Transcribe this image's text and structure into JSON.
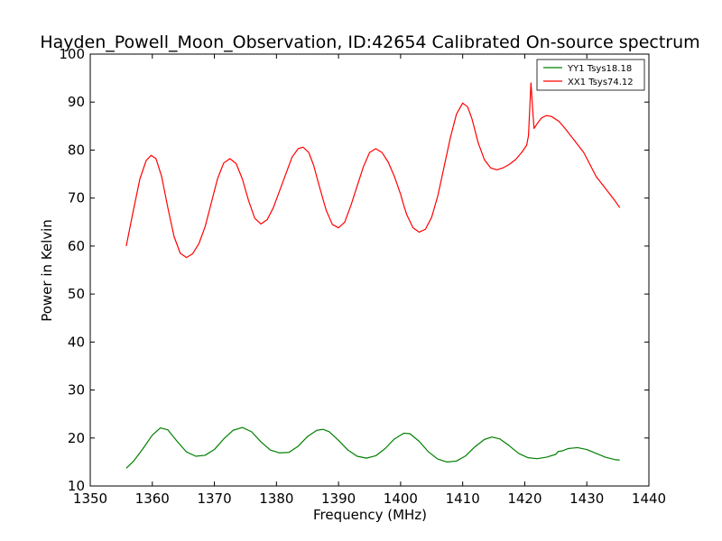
{
  "chart_data": {
    "type": "line",
    "title": "Hayden_Powell_Moon_Observation, ID:42654 Calibrated On-source spectrum",
    "xlabel": "Frequency (MHz)",
    "ylabel": "Power in Kelvin",
    "xlim": [
      1350,
      1440
    ],
    "ylim": [
      10,
      100
    ],
    "xticks": [
      1350,
      1360,
      1370,
      1380,
      1390,
      1400,
      1410,
      1420,
      1430,
      1440
    ],
    "yticks": [
      10,
      20,
      30,
      40,
      50,
      60,
      70,
      80,
      90,
      100
    ],
    "grid": false,
    "legend_position": "top-right",
    "series": [
      {
        "name": "YY1 Tsys18.18",
        "color": "#008000",
        "points": [
          [
            1355.8,
            13.7
          ],
          [
            1357.0,
            15.2
          ],
          [
            1358.5,
            17.8
          ],
          [
            1360.0,
            20.6
          ],
          [
            1361.3,
            22.1
          ],
          [
            1362.5,
            21.7
          ],
          [
            1364.0,
            19.3
          ],
          [
            1365.5,
            17.1
          ],
          [
            1367.0,
            16.2
          ],
          [
            1368.5,
            16.4
          ],
          [
            1370.0,
            17.6
          ],
          [
            1371.5,
            19.8
          ],
          [
            1373.0,
            21.6
          ],
          [
            1374.5,
            22.2
          ],
          [
            1376.0,
            21.3
          ],
          [
            1377.5,
            19.2
          ],
          [
            1379.0,
            17.5
          ],
          [
            1380.5,
            16.9
          ],
          [
            1382.0,
            17.0
          ],
          [
            1383.5,
            18.3
          ],
          [
            1385.0,
            20.3
          ],
          [
            1386.5,
            21.6
          ],
          [
            1387.5,
            21.8
          ],
          [
            1388.5,
            21.3
          ],
          [
            1390.0,
            19.5
          ],
          [
            1391.5,
            17.5
          ],
          [
            1393.0,
            16.2
          ],
          [
            1394.5,
            15.8
          ],
          [
            1396.0,
            16.3
          ],
          [
            1397.5,
            17.8
          ],
          [
            1399.0,
            19.8
          ],
          [
            1400.5,
            21.0
          ],
          [
            1401.5,
            20.9
          ],
          [
            1403.0,
            19.3
          ],
          [
            1404.5,
            17.1
          ],
          [
            1406.0,
            15.6
          ],
          [
            1407.5,
            15.0
          ],
          [
            1409.0,
            15.2
          ],
          [
            1410.5,
            16.3
          ],
          [
            1412.0,
            18.2
          ],
          [
            1413.5,
            19.7
          ],
          [
            1414.7,
            20.2
          ],
          [
            1416.0,
            19.8
          ],
          [
            1417.5,
            18.4
          ],
          [
            1419.0,
            16.8
          ],
          [
            1420.5,
            15.9
          ],
          [
            1422.0,
            15.7
          ],
          [
            1423.5,
            16.0
          ],
          [
            1425.0,
            16.6
          ],
          [
            1425.4,
            17.2
          ],
          [
            1426.0,
            17.3
          ],
          [
            1427.0,
            17.8
          ],
          [
            1428.5,
            18.0
          ],
          [
            1430.0,
            17.6
          ],
          [
            1431.5,
            16.8
          ],
          [
            1433.0,
            16.0
          ],
          [
            1434.5,
            15.5
          ],
          [
            1435.3,
            15.4
          ]
        ]
      },
      {
        "name": "XX1 Tsys74.12",
        "color": "#ff0000",
        "points": [
          [
            1355.8,
            60.0
          ],
          [
            1356.8,
            66.5
          ],
          [
            1358.0,
            74.0
          ],
          [
            1359.0,
            77.8
          ],
          [
            1359.8,
            78.9
          ],
          [
            1360.6,
            78.2
          ],
          [
            1361.5,
            74.5
          ],
          [
            1362.5,
            68.0
          ],
          [
            1363.5,
            62.0
          ],
          [
            1364.5,
            58.5
          ],
          [
            1365.5,
            57.6
          ],
          [
            1366.5,
            58.4
          ],
          [
            1367.5,
            60.5
          ],
          [
            1368.5,
            64.0
          ],
          [
            1369.5,
            69.0
          ],
          [
            1370.5,
            74.0
          ],
          [
            1371.5,
            77.3
          ],
          [
            1372.5,
            78.2
          ],
          [
            1373.5,
            77.2
          ],
          [
            1374.5,
            74.0
          ],
          [
            1375.5,
            69.5
          ],
          [
            1376.5,
            65.8
          ],
          [
            1377.5,
            64.6
          ],
          [
            1378.5,
            65.5
          ],
          [
            1379.5,
            68.0
          ],
          [
            1380.5,
            71.5
          ],
          [
            1381.5,
            75.0
          ],
          [
            1382.5,
            78.5
          ],
          [
            1383.5,
            80.3
          ],
          [
            1384.3,
            80.6
          ],
          [
            1385.2,
            79.5
          ],
          [
            1386.0,
            76.8
          ],
          [
            1387.0,
            72.0
          ],
          [
            1388.0,
            67.5
          ],
          [
            1389.0,
            64.5
          ],
          [
            1390.0,
            63.8
          ],
          [
            1391.0,
            65.0
          ],
          [
            1392.0,
            68.5
          ],
          [
            1393.0,
            72.5
          ],
          [
            1394.0,
            76.5
          ],
          [
            1395.0,
            79.5
          ],
          [
            1396.0,
            80.3
          ],
          [
            1397.0,
            79.5
          ],
          [
            1398.0,
            77.5
          ],
          [
            1399.0,
            74.5
          ],
          [
            1400.0,
            70.8
          ],
          [
            1400.5,
            68.5
          ],
          [
            1401.0,
            66.5
          ],
          [
            1402.0,
            63.8
          ],
          [
            1403.0,
            62.9
          ],
          [
            1404.0,
            63.5
          ],
          [
            1405.0,
            66.0
          ],
          [
            1406.0,
            70.5
          ],
          [
            1407.0,
            76.5
          ],
          [
            1408.0,
            82.5
          ],
          [
            1409.0,
            87.5
          ],
          [
            1410.0,
            89.8
          ],
          [
            1410.8,
            89.0
          ],
          [
            1411.5,
            86.5
          ],
          [
            1412.5,
            81.5
          ],
          [
            1413.5,
            78.0
          ],
          [
            1414.5,
            76.3
          ],
          [
            1415.5,
            75.9
          ],
          [
            1416.5,
            76.3
          ],
          [
            1417.5,
            77.0
          ],
          [
            1418.5,
            78.0
          ],
          [
            1419.5,
            79.5
          ],
          [
            1420.3,
            81.0
          ],
          [
            1420.6,
            83.0
          ],
          [
            1421.0,
            94.0
          ],
          [
            1421.3,
            88.0
          ],
          [
            1421.5,
            84.5
          ],
          [
            1422.0,
            85.5
          ],
          [
            1422.7,
            86.7
          ],
          [
            1423.5,
            87.2
          ],
          [
            1424.3,
            87.0
          ],
          [
            1425.5,
            86.0
          ],
          [
            1426.5,
            84.5
          ],
          [
            1428.0,
            82.0
          ],
          [
            1429.5,
            79.5
          ],
          [
            1430.5,
            77.0
          ],
          [
            1431.5,
            74.5
          ],
          [
            1433.0,
            72.0
          ],
          [
            1434.5,
            69.5
          ],
          [
            1435.3,
            68.0
          ]
        ]
      }
    ]
  }
}
